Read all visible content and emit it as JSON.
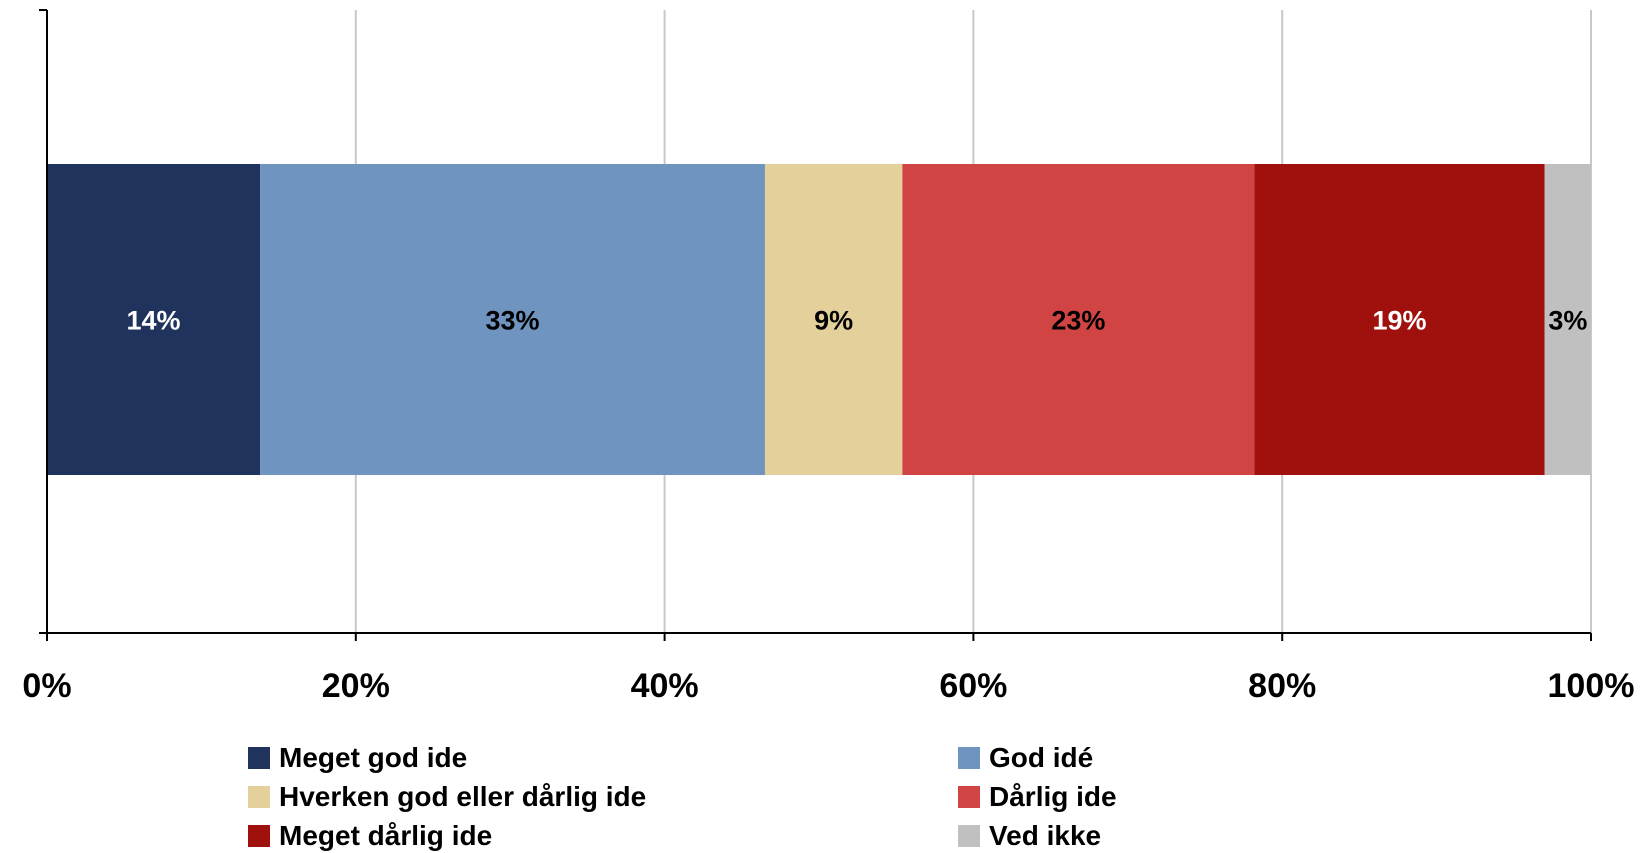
{
  "chart_data": {
    "type": "bar",
    "orientation": "horizontal",
    "stacked": true,
    "title": "",
    "xlabel": "",
    "ylabel": "",
    "xlim": [
      0,
      100
    ],
    "x_ticks": [
      "0%",
      "20%",
      "40%",
      "60%",
      "80%",
      "100%"
    ],
    "grid": true,
    "legend_position": "bottom",
    "series": [
      {
        "name": "Meget god ide",
        "value": 13.8,
        "label": "14%",
        "color": "#1f335c",
        "label_color": "#ffffff"
      },
      {
        "name": "God idé",
        "value": 32.7,
        "label": "33%",
        "color": "#6e94bf",
        "label_color": "#000000"
      },
      {
        "name": "Hverken god eller dårlig ide",
        "value": 8.9,
        "label": "9%",
        "color": "#e4d09a",
        "label_color": "#000000"
      },
      {
        "name": "Dårlig ide",
        "value": 22.8,
        "label": "23%",
        "color": "#d14444",
        "label_color": "#000000"
      },
      {
        "name": "Meget dårlig ide",
        "value": 18.8,
        "label": "19%",
        "color": "#a0100c",
        "label_color": "#ffffff"
      },
      {
        "name": "Ved ikke",
        "value": 3.0,
        "label": "3%",
        "color": "#c0c0c0",
        "label_color": "#000000"
      }
    ]
  }
}
